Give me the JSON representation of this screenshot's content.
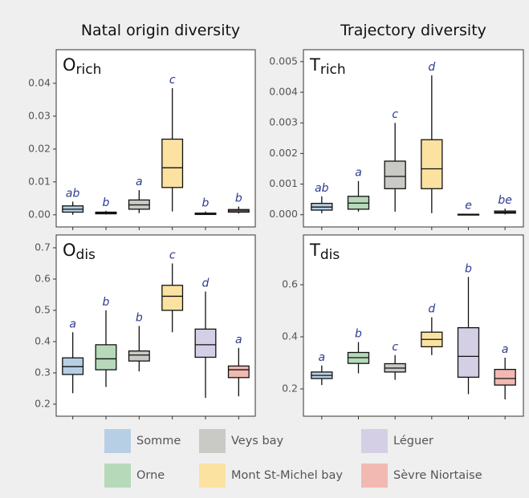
{
  "column_titles": [
    "Natal origin diversity",
    "Trajectory diversity"
  ],
  "legend": [
    {
      "name": "Somme",
      "color": "#b7cfe5"
    },
    {
      "name": "Orne",
      "color": "#b6d9ba"
    },
    {
      "name": "Veys bay",
      "color": "#c9c9c5"
    },
    {
      "name": "Mont St-Michel bay",
      "color": "#fbe2a1"
    },
    {
      "name": "Léguer",
      "color": "#d5cfe5"
    },
    {
      "name": "Sèvre Niortaise",
      "color": "#f2b9b2"
    }
  ],
  "chart_data": [
    {
      "type": "box",
      "label": "O",
      "label_sub": "rich",
      "ylim": [
        -0.0037,
        0.0502
      ],
      "yticks": [
        {
          "value": 0,
          "label": "0.00"
        },
        0.01,
        0.02,
        0.03,
        0.04
      ],
      "boxes": [
        {
          "whislo": 0.0,
          "q1": 0.0008,
          "med": 0.0017,
          "q3": 0.0027,
          "whishi": 0.004,
          "letter": "ab"
        },
        {
          "whislo": 0.0001,
          "q1": 0.0003,
          "med": 0.0006,
          "q3": 0.0008,
          "whishi": 0.0012,
          "letter": "b"
        },
        {
          "whislo": 0.0005,
          "q1": 0.0017,
          "med": 0.003,
          "q3": 0.0045,
          "whishi": 0.0075,
          "letter": "a"
        },
        {
          "whislo": 0.001,
          "q1": 0.0083,
          "med": 0.0143,
          "q3": 0.023,
          "whishi": 0.0385,
          "letter": "c"
        },
        {
          "whislo": 0.0,
          "q1": 0.0001,
          "med": 0.0003,
          "q3": 0.0005,
          "whishi": 0.001,
          "letter": "b"
        },
        {
          "whislo": 0.0004,
          "q1": 0.0008,
          "med": 0.0012,
          "q3": 0.0016,
          "whishi": 0.0025,
          "letter": "b"
        }
      ]
    },
    {
      "type": "box",
      "label": "T",
      "label_sub": "rich",
      "ylim": [
        -0.0004,
        0.00539
      ],
      "yticks": [
        {
          "value": 0,
          "label": "0.000"
        },
        0.001,
        0.002,
        0.003,
        0.004,
        0.005
      ],
      "boxes": [
        {
          "whislo": 5e-05,
          "q1": 0.00015,
          "med": 0.00025,
          "q3": 0.00037,
          "whishi": 0.0006,
          "letter": "ab"
        },
        {
          "whislo": 0.0001,
          "q1": 0.00018,
          "med": 0.00038,
          "q3": 0.0006,
          "whishi": 0.0011,
          "letter": "a"
        },
        {
          "whislo": 0.0001,
          "q1": 0.00085,
          "med": 0.00125,
          "q3": 0.00175,
          "whishi": 0.003,
          "letter": "c"
        },
        {
          "whislo": 5e-05,
          "q1": 0.00085,
          "med": 0.0015,
          "q3": 0.00245,
          "whishi": 0.00455,
          "letter": "d"
        },
        {
          "whislo": 0.0,
          "q1": 5e-06,
          "med": 1e-05,
          "q3": 1.5e-05,
          "whishi": 3e-05,
          "letter": "e"
        },
        {
          "whislo": 1e-05,
          "q1": 5e-05,
          "med": 8e-05,
          "q3": 0.00012,
          "whishi": 0.0002,
          "letter": "be"
        }
      ]
    },
    {
      "type": "box",
      "label": "O",
      "label_sub": "dis",
      "ylim": [
        0.1615,
        0.741
      ],
      "yticks": [
        0.2,
        0.3,
        0.4,
        0.5,
        0.6,
        0.7
      ],
      "boxes": [
        {
          "whislo": 0.235,
          "q1": 0.295,
          "med": 0.32,
          "q3": 0.348,
          "whishi": 0.43,
          "letter": "a"
        },
        {
          "whislo": 0.255,
          "q1": 0.31,
          "med": 0.345,
          "q3": 0.39,
          "whishi": 0.5,
          "letter": "b"
        },
        {
          "whislo": 0.305,
          "q1": 0.338,
          "med": 0.357,
          "q3": 0.37,
          "whishi": 0.45,
          "letter": "b"
        },
        {
          "whislo": 0.43,
          "q1": 0.5,
          "med": 0.545,
          "q3": 0.58,
          "whishi": 0.65,
          "letter": "c"
        },
        {
          "whislo": 0.22,
          "q1": 0.35,
          "med": 0.39,
          "q3": 0.44,
          "whishi": 0.56,
          "letter": "d"
        },
        {
          "whislo": 0.225,
          "q1": 0.285,
          "med": 0.31,
          "q3": 0.322,
          "whishi": 0.38,
          "letter": "a"
        }
      ]
    },
    {
      "type": "box",
      "label": "T",
      "label_sub": "dis",
      "ylim": [
        0.0954,
        0.791
      ],
      "yticks": [
        0.2,
        0.4,
        0.6
      ],
      "boxes": [
        {
          "whislo": 0.215,
          "q1": 0.24,
          "med": 0.252,
          "q3": 0.265,
          "whishi": 0.29,
          "letter": "a"
        },
        {
          "whislo": 0.26,
          "q1": 0.298,
          "med": 0.32,
          "q3": 0.34,
          "whishi": 0.38,
          "letter": "b"
        },
        {
          "whislo": 0.235,
          "q1": 0.265,
          "med": 0.28,
          "q3": 0.297,
          "whishi": 0.33,
          "letter": "c"
        },
        {
          "whislo": 0.33,
          "q1": 0.362,
          "med": 0.39,
          "q3": 0.418,
          "whishi": 0.475,
          "letter": "d"
        },
        {
          "whislo": 0.18,
          "q1": 0.245,
          "med": 0.325,
          "q3": 0.435,
          "whishi": 0.63,
          "letter": "b"
        },
        {
          "whislo": 0.16,
          "q1": 0.215,
          "med": 0.24,
          "q3": 0.275,
          "whishi": 0.32,
          "letter": "a"
        }
      ]
    }
  ]
}
